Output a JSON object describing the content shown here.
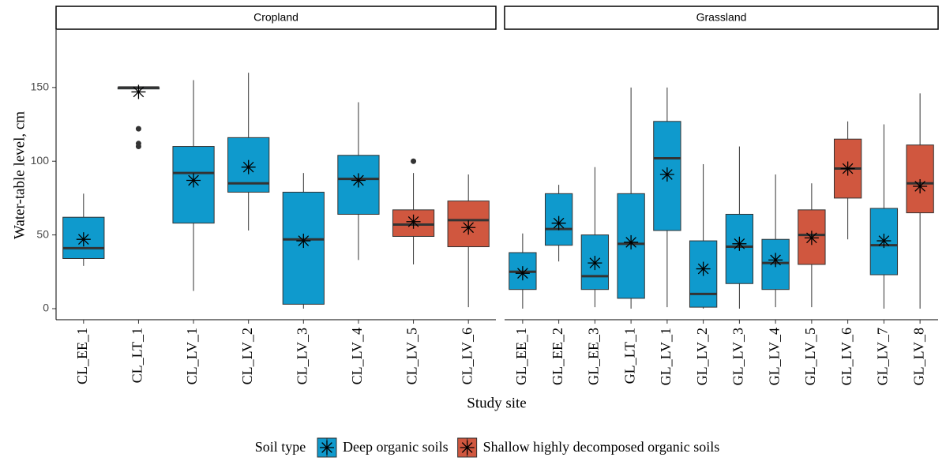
{
  "chart_data": {
    "type": "box",
    "y_label": "Water-table level, cm",
    "x_label": "Study site",
    "ylim": [
      -7.5,
      189
    ],
    "yticks": [
      0,
      50,
      100,
      150
    ],
    "legend": {
      "title": "Soil type",
      "position": "bottom"
    },
    "series": [
      {
        "name": "Deep organic soils",
        "color": "#0f9acd"
      },
      {
        "name": "Shallow highly decomposed organic soils",
        "color": "#d0573f"
      }
    ],
    "facets": [
      {
        "title": "Cropland",
        "categories": [
          "CL_EE_1",
          "CL_LT_1",
          "CL_LV_1",
          "CL_LV_2",
          "CL_LV_3",
          "CL_LV_4",
          "CL_LV_5",
          "CL_LV_6"
        ],
        "groups": [
          0,
          0,
          0,
          0,
          0,
          0,
          1,
          1
        ],
        "whisker_low": [
          29,
          150,
          12,
          53,
          0,
          33,
          30,
          1
        ],
        "q1": [
          34,
          149,
          58,
          79,
          3,
          64,
          49,
          42
        ],
        "median": [
          41,
          150,
          92,
          85,
          47,
          88,
          57,
          60
        ],
        "q3": [
          62,
          150,
          110,
          116,
          79,
          104,
          67,
          73
        ],
        "whisker_high": [
          78,
          150,
          155,
          160,
          92,
          140,
          92,
          91
        ],
        "mean": [
          47,
          147,
          87,
          96,
          46,
          87,
          59,
          55
        ],
        "outliers": [
          [],
          [
            122,
            112,
            110
          ],
          [],
          [],
          [],
          [],
          [
            100
          ],
          []
        ]
      },
      {
        "title": "Grassland",
        "categories": [
          "GL_EE_1",
          "GL_EE_2",
          "GL_EE_3",
          "GL_LT_1",
          "GL_LV_1",
          "GL_LV_2",
          "GL_LV_3",
          "GL_LV_4",
          "GL_LV_5",
          "GL_LV_6",
          "GL_LV_7",
          "GL_LV_8"
        ],
        "groups": [
          0,
          0,
          0,
          0,
          0,
          0,
          0,
          0,
          1,
          1,
          0,
          1
        ],
        "whisker_low": [
          0,
          32,
          1,
          0,
          1,
          0,
          0,
          1,
          1,
          47,
          0,
          0
        ],
        "q1": [
          13,
          43,
          13,
          7,
          53,
          1,
          17,
          13,
          30,
          75,
          23,
          65
        ],
        "median": [
          25,
          54,
          22,
          44,
          102,
          10,
          42,
          31,
          50,
          95,
          43,
          85
        ],
        "q3": [
          38,
          78,
          50,
          78,
          127,
          46,
          64,
          47,
          67,
          115,
          68,
          111
        ],
        "whisker_high": [
          51,
          84,
          96,
          150,
          150,
          98,
          110,
          91,
          85,
          127,
          125,
          146
        ],
        "mean": [
          24,
          58,
          31,
          45,
          91,
          27,
          44,
          33,
          48,
          95,
          46,
          83
        ],
        "outliers": [
          [],
          [],
          [],
          [],
          [],
          [],
          [],
          [],
          [],
          [],
          [],
          []
        ]
      }
    ]
  }
}
